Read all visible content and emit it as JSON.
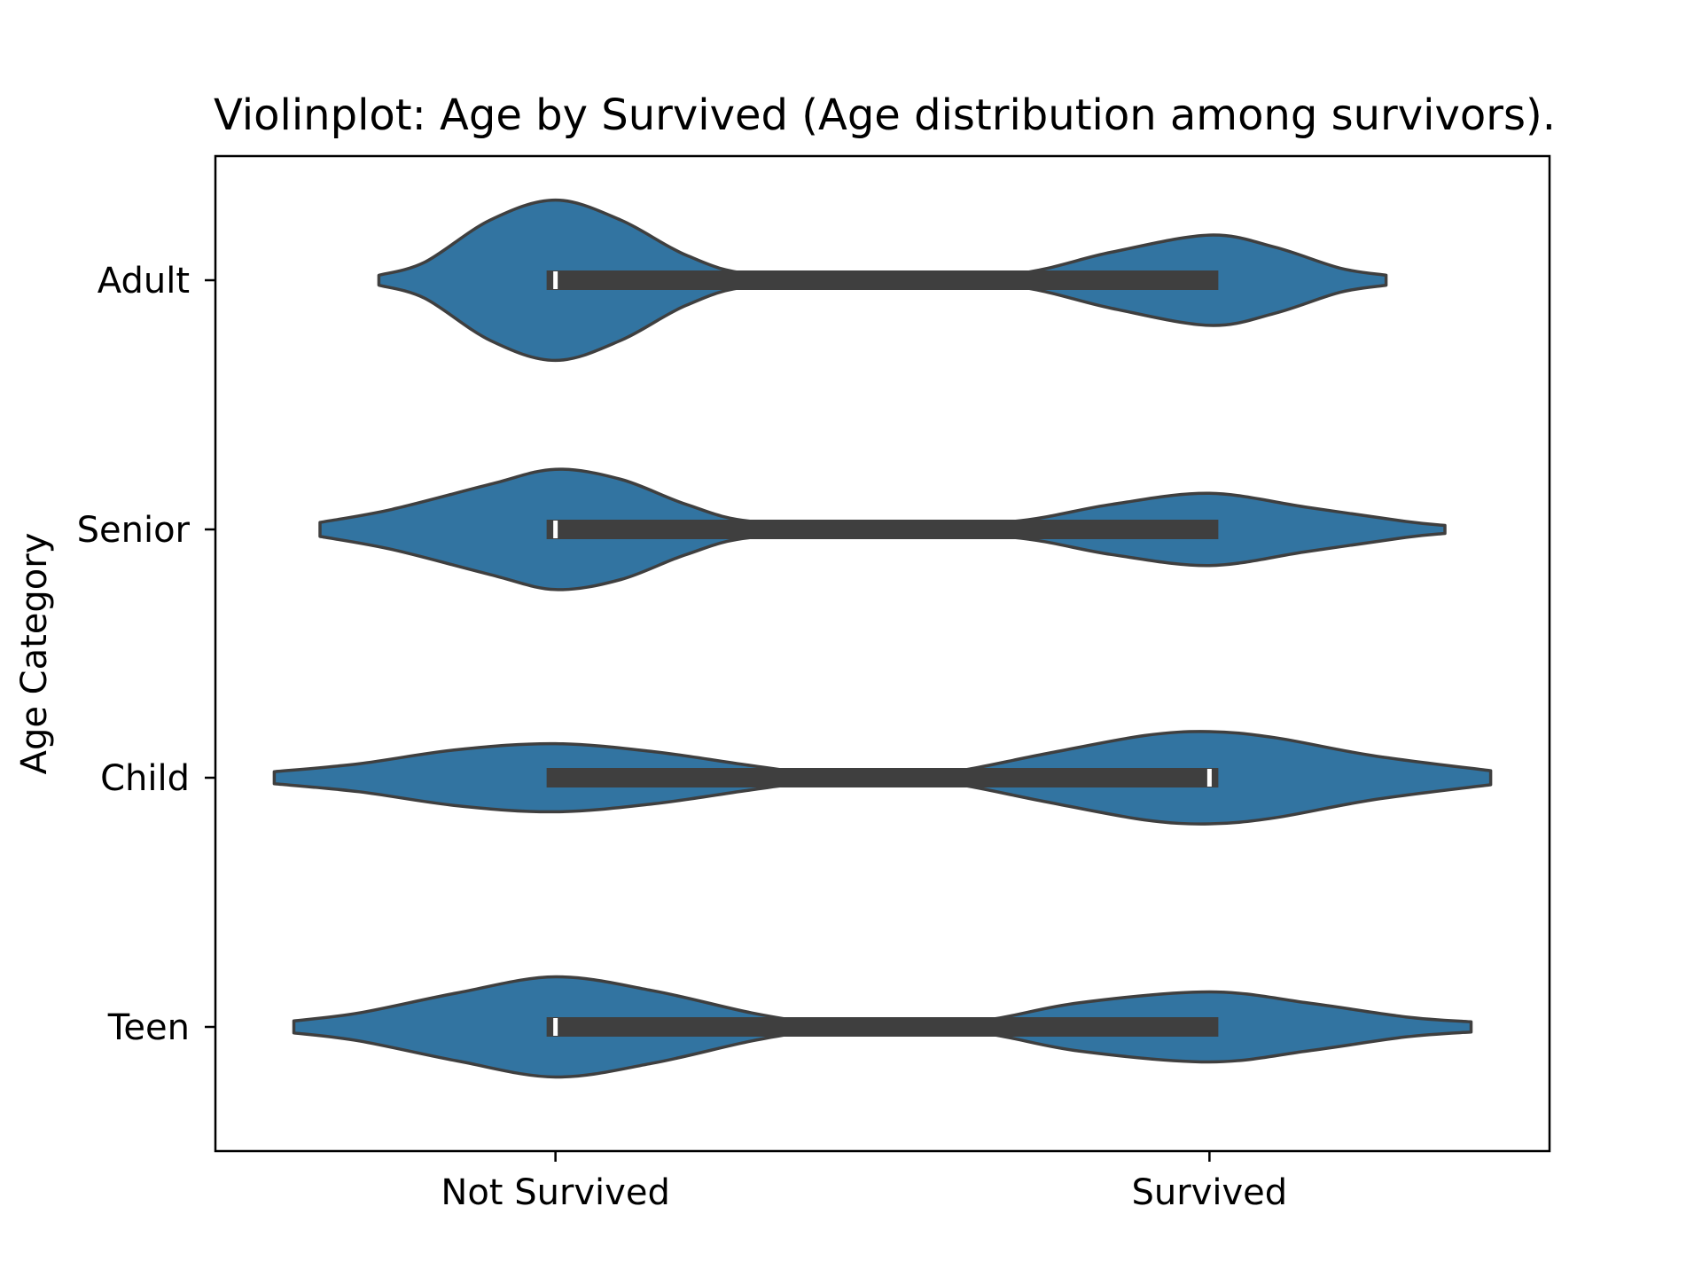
{
  "chart_data": {
    "type": "violin",
    "orientation": "horizontal",
    "title": "Violinplot: Age by Survived (Age distribution among survivors).",
    "xlabel": "",
    "ylabel": "Age Category",
    "x_tick_labels": [
      "Not Survived",
      "Survived"
    ],
    "xlim": [
      -0.52,
      1.52
    ],
    "categories": [
      "Adult",
      "Senior",
      "Child",
      "Teen"
    ],
    "series": [
      {
        "category": "Adult",
        "min": -0.27,
        "max": 1.27,
        "q1": 0.0,
        "median": 0.0,
        "q3": 1.0,
        "density": [
          {
            "x": -0.27,
            "w": 0.05
          },
          {
            "x": -0.2,
            "w": 0.18
          },
          {
            "x": -0.1,
            "w": 0.6
          },
          {
            "x": 0.0,
            "w": 0.8
          },
          {
            "x": 0.1,
            "w": 0.6
          },
          {
            "x": 0.2,
            "w": 0.25
          },
          {
            "x": 0.3,
            "w": 0.06
          },
          {
            "x": 0.5,
            "w": 0.03
          },
          {
            "x": 0.7,
            "w": 0.06
          },
          {
            "x": 0.85,
            "w": 0.28
          },
          {
            "x": 1.0,
            "w": 0.45
          },
          {
            "x": 1.1,
            "w": 0.33
          },
          {
            "x": 1.2,
            "w": 0.12
          },
          {
            "x": 1.27,
            "w": 0.05
          }
        ]
      },
      {
        "category": "Senior",
        "min": -0.36,
        "max": 1.36,
        "q1": 0.0,
        "median": 0.0,
        "q3": 1.0,
        "density": [
          {
            "x": -0.36,
            "w": 0.07
          },
          {
            "x": -0.25,
            "w": 0.2
          },
          {
            "x": -0.1,
            "w": 0.45
          },
          {
            "x": 0.0,
            "w": 0.6
          },
          {
            "x": 0.1,
            "w": 0.5
          },
          {
            "x": 0.2,
            "w": 0.25
          },
          {
            "x": 0.3,
            "w": 0.08
          },
          {
            "x": 0.5,
            "w": 0.04
          },
          {
            "x": 0.7,
            "w": 0.08
          },
          {
            "x": 0.85,
            "w": 0.25
          },
          {
            "x": 1.0,
            "w": 0.36
          },
          {
            "x": 1.15,
            "w": 0.22
          },
          {
            "x": 1.3,
            "w": 0.08
          },
          {
            "x": 1.36,
            "w": 0.04
          }
        ]
      },
      {
        "category": "Child",
        "min": -0.43,
        "max": 1.43,
        "q1": 0.0,
        "median": 1.0,
        "q3": 1.0,
        "density": [
          {
            "x": -0.43,
            "w": 0.06
          },
          {
            "x": -0.3,
            "w": 0.14
          },
          {
            "x": -0.15,
            "w": 0.28
          },
          {
            "x": 0.0,
            "w": 0.34
          },
          {
            "x": 0.15,
            "w": 0.26
          },
          {
            "x": 0.3,
            "w": 0.12
          },
          {
            "x": 0.4,
            "w": 0.04
          },
          {
            "x": 0.5,
            "w": 0.02
          },
          {
            "x": 0.6,
            "w": 0.05
          },
          {
            "x": 0.75,
            "w": 0.24
          },
          {
            "x": 0.9,
            "w": 0.42
          },
          {
            "x": 1.0,
            "w": 0.46
          },
          {
            "x": 1.1,
            "w": 0.4
          },
          {
            "x": 1.25,
            "w": 0.22
          },
          {
            "x": 1.43,
            "w": 0.07
          }
        ]
      },
      {
        "category": "Teen",
        "min": -0.4,
        "max": 1.4,
        "q1": 0.0,
        "median": 0.0,
        "q3": 1.0,
        "density": [
          {
            "x": -0.4,
            "w": 0.06
          },
          {
            "x": -0.3,
            "w": 0.14
          },
          {
            "x": -0.15,
            "w": 0.34
          },
          {
            "x": 0.0,
            "w": 0.5
          },
          {
            "x": 0.15,
            "w": 0.36
          },
          {
            "x": 0.3,
            "w": 0.14
          },
          {
            "x": 0.4,
            "w": 0.04
          },
          {
            "x": 0.5,
            "w": 0.02
          },
          {
            "x": 0.65,
            "w": 0.06
          },
          {
            "x": 0.8,
            "w": 0.24
          },
          {
            "x": 1.0,
            "w": 0.35
          },
          {
            "x": 1.15,
            "w": 0.24
          },
          {
            "x": 1.3,
            "w": 0.1
          },
          {
            "x": 1.4,
            "w": 0.05
          }
        ]
      }
    ],
    "colors": {
      "violin_fill": "#3274a1",
      "violin_edge": "#3f3f3f",
      "box": "#3f3f3f",
      "median": "#ffffff"
    },
    "grid": false,
    "legend": "none"
  }
}
